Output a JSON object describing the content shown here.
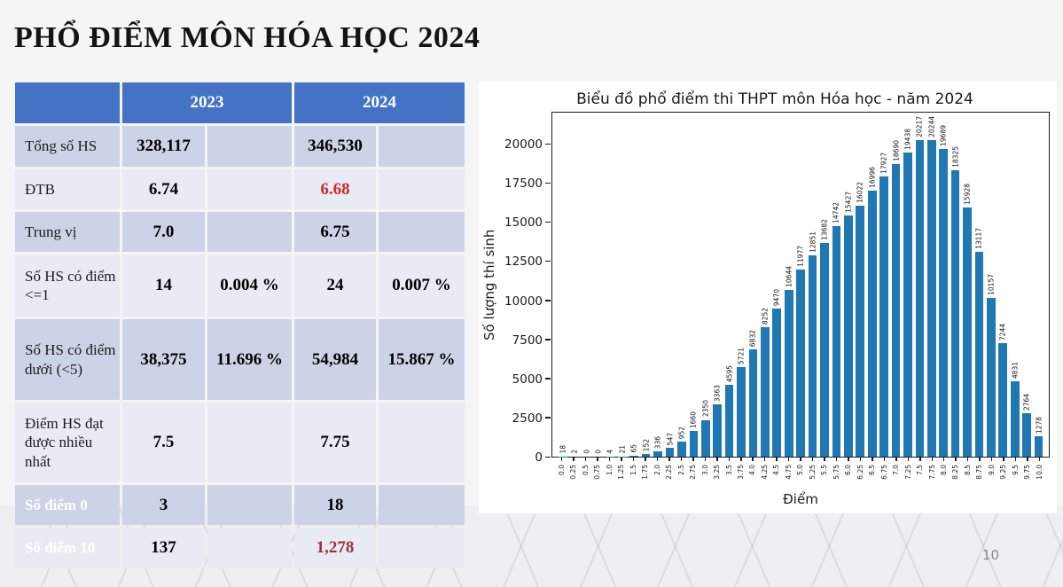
{
  "slide": {
    "title": "PHỔ ĐIỂM MÔN HÓA HỌC 2024",
    "page_number": "10"
  },
  "colors": {
    "header_blue": "#4472c4",
    "band_dark": "#cdd3e6",
    "band_light": "#e9ebf4",
    "highlight_red": "#d02b2b",
    "highlight_darkred": "#9e3039",
    "bar_blue": "#1f77b4"
  },
  "table": {
    "header": {
      "blank": "",
      "year_left": "2023",
      "year_right": "2024"
    },
    "rows": [
      {
        "label": "Tổng số HS",
        "band": "dark",
        "white_label": false,
        "cells": [
          {
            "t": "328,117"
          },
          {
            "t": ""
          },
          {
            "t": "346,530"
          },
          {
            "t": ""
          }
        ]
      },
      {
        "label": "ĐTB",
        "band": "light",
        "white_label": false,
        "cells": [
          {
            "t": "6.74"
          },
          {
            "t": ""
          },
          {
            "t": "6.68",
            "c": "red"
          },
          {
            "t": ""
          }
        ]
      },
      {
        "label": "Trung vị",
        "band": "dark",
        "white_label": false,
        "cells": [
          {
            "t": "7.0"
          },
          {
            "t": ""
          },
          {
            "t": "6.75"
          },
          {
            "t": ""
          }
        ]
      },
      {
        "label": "Số HS có điểm <=1",
        "band": "light",
        "white_label": false,
        "cells": [
          {
            "t": "14"
          },
          {
            "t": "0.004 %"
          },
          {
            "t": "24"
          },
          {
            "t": "0.007 %"
          }
        ]
      },
      {
        "label": "Số HS có điểm dưới (<5)",
        "band": "dark",
        "white_label": false,
        "cells": [
          {
            "t": "38,375"
          },
          {
            "t": "11.696 %"
          },
          {
            "t": "54,984"
          },
          {
            "t": "15.867 %"
          }
        ]
      },
      {
        "label": "Điểm HS đạt được nhiều nhất",
        "band": "light",
        "white_label": false,
        "cells": [
          {
            "t": "7.5"
          },
          {
            "t": ""
          },
          {
            "t": "7.75"
          },
          {
            "t": ""
          }
        ]
      },
      {
        "label": "Số điểm 0",
        "band": "dark",
        "white_label": true,
        "cells": [
          {
            "t": "3"
          },
          {
            "t": ""
          },
          {
            "t": "18"
          },
          {
            "t": ""
          }
        ]
      },
      {
        "label": "Số điểm 10",
        "band": "light",
        "white_label": true,
        "cells": [
          {
            "t": "137"
          },
          {
            "t": ""
          },
          {
            "t": "1,278",
            "c": "darkred"
          },
          {
            "t": ""
          }
        ]
      }
    ]
  },
  "chart_data": {
    "type": "bar",
    "title": "Biểu đồ phổ điểm thi THPT môn Hóa học - năm 2024",
    "xlabel": "Điểm",
    "ylabel": "Số lượng thí sinh",
    "x": [
      "0.0",
      "0.25",
      "0.5",
      "0.75",
      "1.0",
      "1.25",
      "1.5",
      "1.75",
      "2.0",
      "2.25",
      "2.5",
      "2.75",
      "3.0",
      "3.25",
      "3.5",
      "3.75",
      "4.0",
      "4.25",
      "4.5",
      "4.75",
      "5.0",
      "5.25",
      "5.5",
      "5.75",
      "6.0",
      "6.25",
      "6.5",
      "6.75",
      "7.0",
      "7.25",
      "7.5",
      "7.75",
      "8.0",
      "8.25",
      "8.5",
      "8.75",
      "9.0",
      "9.25",
      "9.5",
      "9.75",
      "10.0"
    ],
    "values": [
      18,
      2,
      0,
      0,
      4,
      21,
      65,
      152,
      336,
      547,
      952,
      1660,
      2350,
      3363,
      4595,
      5721,
      6832,
      8252,
      9470,
      10644,
      11977,
      12851,
      13682,
      14742,
      15427,
      16022,
      16996,
      17927,
      18690,
      19438,
      20217,
      20244,
      19689,
      18325,
      15928,
      13117,
      10157,
      7244,
      4831,
      2764,
      1278
    ],
    "yticks": [
      0,
      2500,
      5000,
      7500,
      10000,
      12500,
      15000,
      17500,
      20000
    ],
    "ylim": [
      0,
      22100
    ],
    "bar_color": "#1f77b4",
    "data_labels": true,
    "data_label_rotation": 90,
    "xtick_rotation": 90,
    "grid": false,
    "legend": null
  }
}
